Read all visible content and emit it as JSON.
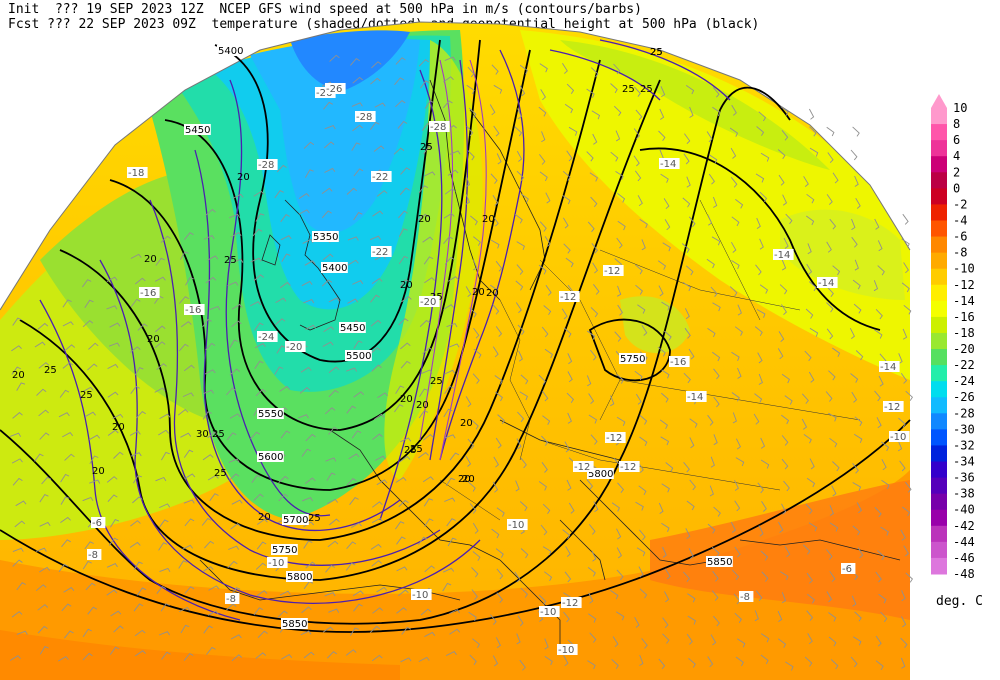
{
  "header": {
    "line1": "Init  ??? 19 SEP 2023 12Z  NCEP GFS wind speed at 500 hPa in m/s (contours/barbs)",
    "line2": "Fcst ??? 22 SEP 2023 09Z  temperature (shaded/dotted) and geopotential height at 500 hPa (black)"
  },
  "legend": {
    "unit": "deg. C",
    "levels": [
      {
        "v": "10",
        "c": "#ff99cc"
      },
      {
        "v": "8",
        "c": "#ff55aa"
      },
      {
        "v": "6",
        "c": "#ee3399"
      },
      {
        "v": "4",
        "c": "#cc0077"
      },
      {
        "v": "2",
        "c": "#bb0044"
      },
      {
        "v": "0",
        "c": "#cc0022"
      },
      {
        "v": "-2",
        "c": "#ee2200"
      },
      {
        "v": "-4",
        "c": "#ff5500"
      },
      {
        "v": "-6",
        "c": "#ff8800"
      },
      {
        "v": "-8",
        "c": "#ffaa00"
      },
      {
        "v": "-10",
        "c": "#ffcc00"
      },
      {
        "v": "-12",
        "c": "#ffee00"
      },
      {
        "v": "-14",
        "c": "#f4ff00"
      },
      {
        "v": "-16",
        "c": "#ccf000"
      },
      {
        "v": "-18",
        "c": "#99e830"
      },
      {
        "v": "-20",
        "c": "#55e060"
      },
      {
        "v": "-22",
        "c": "#22eeaa"
      },
      {
        "v": "-24",
        "c": "#00ddee"
      },
      {
        "v": "-26",
        "c": "#11bbff"
      },
      {
        "v": "-28",
        "c": "#1188ff"
      },
      {
        "v": "-30",
        "c": "#0055ff"
      },
      {
        "v": "-32",
        "c": "#0022dd"
      },
      {
        "v": "-34",
        "c": "#3300cc"
      },
      {
        "v": "-36",
        "c": "#5500bb"
      },
      {
        "v": "-38",
        "c": "#7700aa"
      },
      {
        "v": "-40",
        "c": "#9900aa"
      },
      {
        "v": "-42",
        "c": "#bb33bb"
      },
      {
        "v": "-44",
        "c": "#cc55cc"
      },
      {
        "v": "-46",
        "c": "#dd77dd"
      },
      {
        "v": "-48",
        "c": "#ee99ee"
      }
    ]
  },
  "height_labels": [
    "5400",
    "5450",
    "5350",
    "5400",
    "5450",
    "5500",
    "5550",
    "5600",
    "5700",
    "5750",
    "5800",
    "5850",
    "5750",
    "5800",
    "5850"
  ],
  "wind_labels": [
    "20",
    "20",
    "25",
    "20",
    "20",
    "25",
    "20",
    "25",
    "20",
    "25",
    "20",
    "25",
    "20",
    "25",
    "30",
    "20",
    "25",
    "20",
    "25",
    "20",
    "25",
    "25",
    "20",
    "20",
    "25",
    "25",
    "20",
    "25",
    "20",
    "25",
    "20",
    "25",
    "20"
  ],
  "temp_labels": [
    "-26",
    "-28",
    "-28",
    "-22",
    "-22",
    "-20",
    "-18",
    "-16",
    "-14",
    "-12",
    "-14",
    "-14",
    "-16",
    "-12",
    "-12",
    "-14",
    "-12",
    "-10",
    "-10",
    "-10",
    "-12",
    "-8",
    "-6",
    "-8",
    "-6",
    "-10",
    "-12",
    "-10",
    "-12",
    "-10",
    "-8",
    "-14",
    "-16",
    "-20",
    "-26",
    "-28",
    "-24"
  ]
}
